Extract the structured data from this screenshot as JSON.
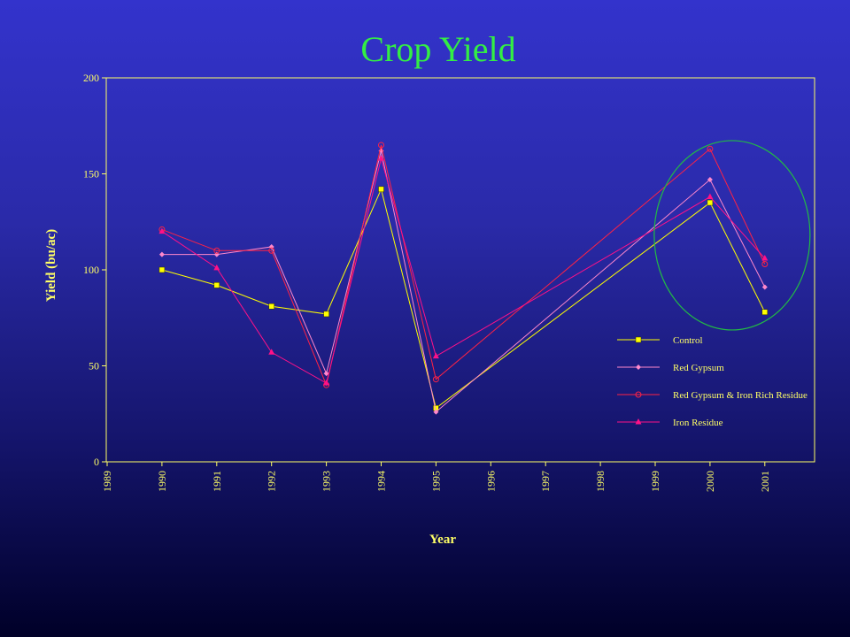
{
  "slide": {
    "title": "Crop Yield"
  },
  "colors": {
    "axis": "#ffff66",
    "highlight_circle": "#22bb44"
  },
  "chart_data": {
    "type": "line",
    "xlabel": "Year",
    "ylabel": "Yield (bu/ac)",
    "xlim": [
      1989,
      2002
    ],
    "ylim": [
      0,
      200
    ],
    "x_ticks": [
      "1989",
      "1990",
      "1991",
      "1992",
      "1993",
      "1994",
      "1995",
      "1996",
      "1997",
      "1998",
      "1999",
      "2000",
      "2001"
    ],
    "y_ticks": [
      "0",
      "50",
      "100",
      "150",
      "200"
    ],
    "grid": false,
    "legend_position": "lower-right",
    "highlight": {
      "shape": "ellipse",
      "around_years": [
        2000,
        2001
      ]
    },
    "series": [
      {
        "name": "Control",
        "color": "#ffff00",
        "marker": "square",
        "x": [
          1990,
          1991,
          1992,
          1993,
          1994,
          1995,
          2000,
          2001
        ],
        "values": [
          100,
          92,
          81,
          77,
          142,
          28,
          135,
          78
        ]
      },
      {
        "name": "Red Gypsum",
        "color": "#ff88cc",
        "marker": "diamond",
        "x": [
          1990,
          1991,
          1992,
          1993,
          1994,
          1995,
          2000,
          2001
        ],
        "values": [
          108,
          108,
          112,
          46,
          162,
          26,
          147,
          91
        ]
      },
      {
        "name": "Red Gypsum & Iron Rich Residue",
        "color": "#ff2244",
        "marker": "circle",
        "x": [
          1990,
          1991,
          1992,
          1993,
          1994,
          1995,
          2000,
          2001
        ],
        "values": [
          121,
          110,
          110,
          40,
          165,
          43,
          163,
          103
        ]
      },
      {
        "name": "Iron Residue",
        "color": "#ff1188",
        "marker": "triangle",
        "x": [
          1990,
          1991,
          1992,
          1993,
          1994,
          1995,
          2000,
          2001
        ],
        "values": [
          120,
          101,
          57,
          41,
          158,
          55,
          138,
          106
        ]
      }
    ]
  }
}
